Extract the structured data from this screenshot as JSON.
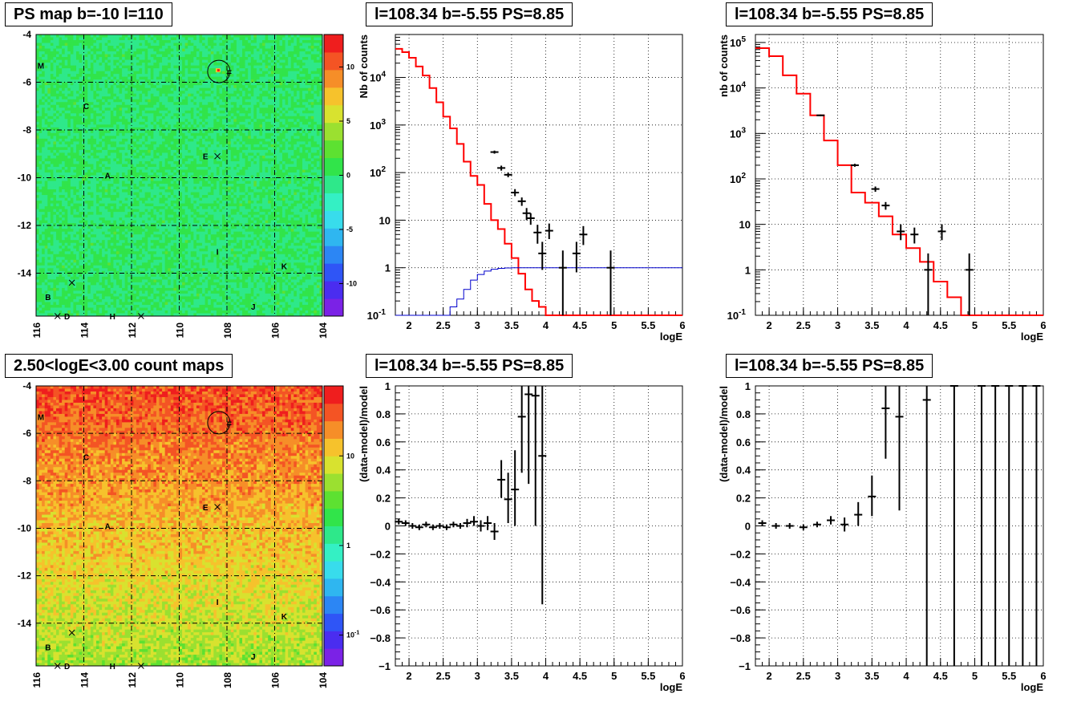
{
  "titles": {
    "ps_map": "PS map b=-10 l=110",
    "spec_top_mid": "l=108.34 b=-5.55 PS=8.85",
    "spec_top_right": "l=108.34 b=-5.55 PS=8.85",
    "count_map": "2.50<logE<3.00 count maps",
    "resid_bot_mid": "l=108.34 b=-5.55 PS=8.85",
    "resid_bot_right": "l=108.34 b=-5.55 PS=8.85"
  },
  "colors": {
    "model_line": "#ff0000",
    "component_line": "#0000cc",
    "data_points": "#000000"
  },
  "chart_data": [
    {
      "id": "ps_map",
      "type": "heatmap",
      "title": "PS map b=-10 l=110",
      "x_tick_labels": [
        "116",
        "114",
        "112",
        "110",
        "108",
        "106",
        "104"
      ],
      "y_tick_labels": [
        "-4",
        "-6",
        "-8",
        "-10",
        "-12",
        "-14"
      ],
      "xlim": [
        116,
        104
      ],
      "ylim": [
        -15.8,
        -4
      ],
      "colorbar_ticks": [
        "10",
        "5",
        "0",
        "-5",
        "-10"
      ],
      "colorbar_range": [
        -13,
        13
      ],
      "sources": [
        {
          "label": "M",
          "l": 115.8,
          "b": -5.3
        },
        {
          "label": "F",
          "l": 107.9,
          "b": -5.6
        },
        {
          "label": "C",
          "l": 113.9,
          "b": -7.0
        },
        {
          "label": "E",
          "l": 108.9,
          "b": -9.1
        },
        {
          "label": "A",
          "l": 113.0,
          "b": -9.9
        },
        {
          "label": "I",
          "l": 108.4,
          "b": -13.1
        },
        {
          "label": "K",
          "l": 105.6,
          "b": -13.7
        },
        {
          "label": "B",
          "l": 115.5,
          "b": -15.0
        },
        {
          "label": "J",
          "l": 106.9,
          "b": -15.4
        },
        {
          "label": "D",
          "l": 114.7,
          "b": -15.8
        },
        {
          "label": "H",
          "l": 112.8,
          "b": -15.8
        }
      ],
      "crosses": [
        {
          "l": 108.4,
          "b": -9.1
        },
        {
          "l": 114.5,
          "b": -14.4
        },
        {
          "l": 115.1,
          "b": -15.8
        },
        {
          "l": 111.6,
          "b": -15.8
        }
      ],
      "circle": {
        "l": 108.34,
        "b": -5.55
      }
    },
    {
      "id": "spec_top_mid",
      "type": "line",
      "title": "l=108.34 b=-5.55 PS=8.85",
      "xlabel": "logE",
      "ylabel": "Nb of counts",
      "xlim": [
        1.8,
        6
      ],
      "ylim": [
        0.1,
        80000
      ],
      "yscale": "log",
      "x_ticks": [
        "2",
        "2.5",
        "3",
        "3.5",
        "4",
        "4.5",
        "5",
        "5.5",
        "6"
      ],
      "y_ticks": [
        "10^-1",
        "1",
        "10",
        "10^2",
        "10^3",
        "10^4"
      ],
      "grid": true,
      "bin_edges": [
        1.8,
        1.9,
        2.0,
        2.1,
        2.2,
        2.3,
        2.4,
        2.5,
        2.6,
        2.7,
        2.8,
        2.9,
        3.0,
        3.1,
        3.2,
        3.3,
        3.4,
        3.5,
        3.6,
        3.7,
        3.8,
        3.9,
        4.0,
        4.1,
        4.2,
        4.3,
        4.4,
        4.5,
        4.6,
        4.7,
        4.8,
        4.9,
        5.0,
        5.1,
        5.2,
        5.3,
        5.4,
        5.5,
        5.6,
        5.7,
        5.8,
        5.9,
        6.0
      ],
      "series": [
        {
          "values": [
            40000,
            34000,
            26000,
            17000,
            11000,
            6000,
            3000,
            1500,
            850,
            400,
            170,
            85,
            55,
            22,
            10,
            6.5,
            3.2,
            1.6,
            0.75,
            0.35,
            0.2,
            0.15,
            0.1,
            0.1,
            0.1,
            0.1,
            0.1,
            0.1,
            0.1,
            0.1,
            0.1,
            0.1,
            0.1,
            0.1,
            0.1,
            0.1,
            0.1,
            0.1,
            0.1,
            0.1,
            0.1,
            0.1
          ]
        },
        {
          "values": [
            0.1,
            0.1,
            0.1,
            0.1,
            0.1,
            0.1,
            0.1,
            0.1,
            0.15,
            0.22,
            0.35,
            0.55,
            0.72,
            0.85,
            0.93,
            0.97,
            0.99,
            1,
            1,
            1,
            1,
            1,
            1,
            1,
            1,
            1,
            1,
            1,
            1,
            1,
            1,
            1,
            1,
            1,
            1,
            1,
            1,
            1,
            1,
            1,
            1,
            1
          ]
        }
      ],
      "points": [
        {
          "x": 3.25,
          "y": 270,
          "ylo": 250,
          "yhi": 290
        },
        {
          "x": 3.35,
          "y": 125,
          "ylo": 110,
          "yhi": 140
        },
        {
          "x": 3.45,
          "y": 90,
          "ylo": 80,
          "yhi": 100
        },
        {
          "x": 3.55,
          "y": 38,
          "ylo": 32,
          "yhi": 45
        },
        {
          "x": 3.65,
          "y": 25,
          "ylo": 20,
          "yhi": 30
        },
        {
          "x": 3.72,
          "y": 14,
          "ylo": 10,
          "yhi": 18
        },
        {
          "x": 3.78,
          "y": 11,
          "ylo": 8,
          "yhi": 14
        },
        {
          "x": 3.88,
          "y": 5.5,
          "ylo": 3.2,
          "yhi": 8
        },
        {
          "x": 3.95,
          "y": 2,
          "ylo": 0.9,
          "yhi": 3.5
        },
        {
          "x": 4.05,
          "y": 6,
          "ylo": 4,
          "yhi": 8.5
        },
        {
          "x": 4.25,
          "y": 1,
          "ylo": 0.1,
          "yhi": 2.3
        },
        {
          "x": 4.45,
          "y": 2,
          "ylo": 0.8,
          "yhi": 3.5
        },
        {
          "x": 4.55,
          "y": 5,
          "ylo": 3,
          "yhi": 7.5
        },
        {
          "x": 4.95,
          "y": 1,
          "ylo": 0.1,
          "yhi": 2.3
        }
      ]
    },
    {
      "id": "spec_top_right",
      "type": "line",
      "title": "l=108.34 b=-5.55 PS=8.85",
      "xlabel": "logE",
      "ylabel": "nb of counts",
      "xlim": [
        1.8,
        6
      ],
      "ylim": [
        0.1,
        150000
      ],
      "yscale": "log",
      "x_ticks": [
        "2",
        "2.5",
        "3",
        "3.5",
        "4",
        "4.5",
        "5",
        "5.5",
        "6"
      ],
      "y_ticks": [
        "10^-1",
        "1",
        "10",
        "10^2",
        "10^3",
        "10^4",
        "10^5"
      ],
      "grid": true,
      "bin_edges": [
        1.8,
        2.0,
        2.2,
        2.4,
        2.6,
        2.8,
        3.0,
        3.2,
        3.4,
        3.6,
        3.8,
        4.0,
        4.2,
        4.4,
        4.6,
        4.8,
        5.0,
        5.2,
        5.4,
        5.6,
        5.8,
        6.0
      ],
      "series": [
        {
          "values": [
            75000,
            50000,
            19000,
            7500,
            2500,
            700,
            200,
            50,
            30,
            15,
            6,
            3,
            1.5,
            0.55,
            0.25,
            0.1,
            0.1,
            0.1,
            0.1,
            0.1,
            0.1
          ]
        }
      ],
      "points": [
        {
          "x": 2.75,
          "y": 2500,
          "ylo": 2400,
          "yhi": 2600
        },
        {
          "x": 3.25,
          "y": 200,
          "ylo": 185,
          "yhi": 215
        },
        {
          "x": 3.55,
          "y": 60,
          "ylo": 52,
          "yhi": 68
        },
        {
          "x": 3.7,
          "y": 26,
          "ylo": 21,
          "yhi": 31
        },
        {
          "x": 3.92,
          "y": 7,
          "ylo": 4.5,
          "yhi": 10
        },
        {
          "x": 4.12,
          "y": 6,
          "ylo": 3.8,
          "yhi": 8.5
        },
        {
          "x": 4.32,
          "y": 1,
          "ylo": 0.1,
          "yhi": 2.3
        },
        {
          "x": 4.52,
          "y": 7,
          "ylo": 4.5,
          "yhi": 10
        },
        {
          "x": 4.92,
          "y": 1,
          "ylo": 0.1,
          "yhi": 2.3
        }
      ]
    },
    {
      "id": "count_map",
      "type": "heatmap",
      "title": "2.50<logE<3.00 count maps",
      "x_tick_labels": [
        "116",
        "114",
        "112",
        "110",
        "108",
        "106",
        "104"
      ],
      "y_tick_labels": [
        "-4",
        "-6",
        "-8",
        "-10",
        "-12",
        "-14"
      ],
      "xlim": [
        116,
        104
      ],
      "ylim": [
        -15.8,
        -4
      ],
      "colorbar_ticks": [
        "10",
        "1",
        "10^-1"
      ],
      "colorbar_scale": "log",
      "sources": [
        {
          "label": "M",
          "l": 115.8,
          "b": -5.3
        },
        {
          "label": "F",
          "l": 107.9,
          "b": -5.6
        },
        {
          "label": "C",
          "l": 113.9,
          "b": -7.0
        },
        {
          "label": "E",
          "l": 108.9,
          "b": -9.1
        },
        {
          "label": "A",
          "l": 113.0,
          "b": -9.9
        },
        {
          "label": "I",
          "l": 108.4,
          "b": -13.1
        },
        {
          "label": "K",
          "l": 105.6,
          "b": -13.7
        },
        {
          "label": "B",
          "l": 115.5,
          "b": -15.0
        },
        {
          "label": "J",
          "l": 106.9,
          "b": -15.4
        },
        {
          "label": "D",
          "l": 114.7,
          "b": -15.8
        },
        {
          "label": "H",
          "l": 112.8,
          "b": -15.8
        }
      ],
      "crosses": [
        {
          "l": 108.4,
          "b": -9.1
        },
        {
          "l": 114.5,
          "b": -14.4
        },
        {
          "l": 115.1,
          "b": -15.8
        },
        {
          "l": 111.6,
          "b": -15.8
        }
      ],
      "circle": {
        "l": 108.34,
        "b": -5.55
      }
    },
    {
      "id": "resid_bot_mid",
      "type": "scatter",
      "title": "l=108.34 b=-5.55 PS=8.85",
      "xlabel": "logE",
      "ylabel": "(data-model)/model",
      "xlim": [
        1.8,
        6
      ],
      "ylim": [
        -1,
        1
      ],
      "x_ticks": [
        "2",
        "2.5",
        "3",
        "3.5",
        "4",
        "4.5",
        "5",
        "5.5",
        "6"
      ],
      "y_ticks": [
        "-1",
        "-0.8",
        "-0.6",
        "-0.4",
        "-0.2",
        "0",
        "0.2",
        "0.4",
        "0.6",
        "0.8",
        "1"
      ],
      "grid": true,
      "points": [
        {
          "x": 1.85,
          "y": 0.03,
          "ylo": 0.01,
          "yhi": 0.05
        },
        {
          "x": 1.95,
          "y": 0.02,
          "ylo": 0.0,
          "yhi": 0.04
        },
        {
          "x": 2.05,
          "y": 0.0,
          "ylo": -0.02,
          "yhi": 0.02
        },
        {
          "x": 2.15,
          "y": -0.01,
          "ylo": -0.03,
          "yhi": 0.01
        },
        {
          "x": 2.25,
          "y": 0.01,
          "ylo": -0.01,
          "yhi": 0.03
        },
        {
          "x": 2.35,
          "y": -0.01,
          "ylo": -0.03,
          "yhi": 0.01
        },
        {
          "x": 2.45,
          "y": 0.0,
          "ylo": -0.02,
          "yhi": 0.02
        },
        {
          "x": 2.55,
          "y": -0.01,
          "ylo": -0.03,
          "yhi": 0.01
        },
        {
          "x": 2.65,
          "y": 0.01,
          "ylo": -0.01,
          "yhi": 0.03
        },
        {
          "x": 2.75,
          "y": 0.0,
          "ylo": -0.02,
          "yhi": 0.02
        },
        {
          "x": 2.85,
          "y": 0.02,
          "ylo": -0.01,
          "yhi": 0.05
        },
        {
          "x": 2.95,
          "y": 0.03,
          "ylo": 0.0,
          "yhi": 0.07
        },
        {
          "x": 3.05,
          "y": 0.0,
          "ylo": -0.04,
          "yhi": 0.04
        },
        {
          "x": 3.15,
          "y": 0.02,
          "ylo": -0.03,
          "yhi": 0.07
        },
        {
          "x": 3.25,
          "y": -0.04,
          "ylo": -0.1,
          "yhi": 0.02
        },
        {
          "x": 3.35,
          "y": 0.33,
          "ylo": 0.2,
          "yhi": 0.47
        },
        {
          "x": 3.45,
          "y": 0.19,
          "ylo": 0.02,
          "yhi": 0.38
        },
        {
          "x": 3.55,
          "y": 0.26,
          "ylo": 0.0,
          "yhi": 0.54
        },
        {
          "x": 3.65,
          "y": 0.78,
          "ylo": 0.38,
          "yhi": 1.0
        },
        {
          "x": 3.75,
          "y": 0.94,
          "ylo": 0.3,
          "yhi": 1.0
        },
        {
          "x": 3.85,
          "y": 0.93,
          "ylo": 0.0,
          "yhi": 1.0
        },
        {
          "x": 3.95,
          "y": 0.5,
          "ylo": -0.56,
          "yhi": 1.0
        }
      ]
    },
    {
      "id": "resid_bot_right",
      "type": "scatter",
      "title": "l=108.34 b=-5.55 PS=8.85",
      "xlabel": "logE",
      "ylabel": "(data-model)/model",
      "xlim": [
        1.8,
        6
      ],
      "ylim": [
        -1,
        1
      ],
      "x_ticks": [
        "2",
        "2.5",
        "3",
        "3.5",
        "4",
        "4.5",
        "5",
        "5.5",
        "6"
      ],
      "y_ticks": [
        "-1",
        "-0.8",
        "-0.6",
        "-0.4",
        "-0.2",
        "0",
        "0.2",
        "0.4",
        "0.6",
        "0.8",
        "1"
      ],
      "grid": true,
      "points": [
        {
          "x": 1.9,
          "y": 0.02,
          "ylo": 0.0,
          "yhi": 0.04
        },
        {
          "x": 2.1,
          "y": 0.0,
          "ylo": -0.02,
          "yhi": 0.02
        },
        {
          "x": 2.3,
          "y": 0.0,
          "ylo": -0.02,
          "yhi": 0.02
        },
        {
          "x": 2.5,
          "y": -0.01,
          "ylo": -0.03,
          "yhi": 0.01
        },
        {
          "x": 2.7,
          "y": 0.01,
          "ylo": -0.01,
          "yhi": 0.03
        },
        {
          "x": 2.9,
          "y": 0.04,
          "ylo": 0.01,
          "yhi": 0.07
        },
        {
          "x": 3.1,
          "y": 0.01,
          "ylo": -0.04,
          "yhi": 0.06
        },
        {
          "x": 3.3,
          "y": 0.08,
          "ylo": 0.0,
          "yhi": 0.17
        },
        {
          "x": 3.5,
          "y": 0.21,
          "ylo": 0.07,
          "yhi": 0.36
        },
        {
          "x": 3.7,
          "y": 0.84,
          "ylo": 0.48,
          "yhi": 1.0
        },
        {
          "x": 3.9,
          "y": 0.78,
          "ylo": 0.11,
          "yhi": 1.0
        },
        {
          "x": 4.3,
          "y": 0.9,
          "ylo": -1.0,
          "yhi": 1.0
        },
        {
          "x": 4.7,
          "y": 1.0,
          "ylo": -1.0,
          "yhi": 1.0
        },
        {
          "x": 5.1,
          "y": 1.0,
          "ylo": -1.0,
          "yhi": 1.0
        },
        {
          "x": 5.3,
          "y": 1.0,
          "ylo": -1.0,
          "yhi": 1.0
        },
        {
          "x": 5.5,
          "y": 1.0,
          "ylo": -1.0,
          "yhi": 1.0
        },
        {
          "x": 5.7,
          "y": 1.0,
          "ylo": -1.0,
          "yhi": 1.0
        },
        {
          "x": 5.9,
          "y": 1.0,
          "ylo": -1.0,
          "yhi": 1.0
        }
      ]
    }
  ]
}
